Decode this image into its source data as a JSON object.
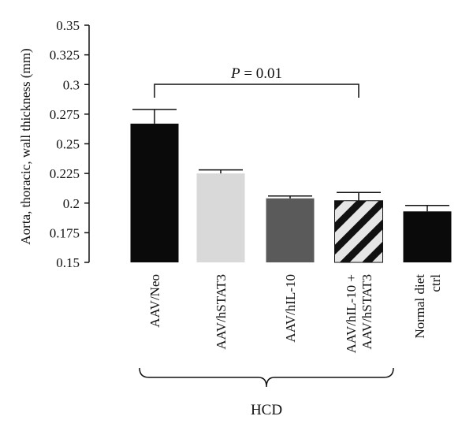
{
  "chart_data": {
    "type": "bar",
    "ylabel": "Aorta, thoracic, wall thickness (mm)",
    "ylim": [
      0.15,
      0.35
    ],
    "yticks": [
      0.15,
      0.175,
      0.2,
      0.225,
      0.25,
      0.275,
      0.3,
      0.325,
      0.35
    ],
    "ytick_labels": [
      "0.15",
      "0.175",
      "0.2",
      "0.225",
      "0.25",
      "0.275",
      "0.3",
      "0.325",
      "0.35"
    ],
    "categories": [
      [
        "AAV/Neo"
      ],
      [
        "AAV/hSTAT3"
      ],
      [
        "AAV/hIL-10"
      ],
      [
        "AAV/hIL-10 +",
        "AAV/hSTAT3"
      ],
      [
        "Normal diet",
        "ctrl"
      ]
    ],
    "values": [
      0.267,
      0.225,
      0.204,
      0.202,
      0.193
    ],
    "errors": [
      0.012,
      0.003,
      0.002,
      0.007,
      0.005
    ],
    "bar_styles": [
      {
        "fill": "#0a0a0a",
        "pattern": "solid"
      },
      {
        "fill": "#d9d9d9",
        "pattern": "solid"
      },
      {
        "fill": "#5a5a5a",
        "pattern": "solid"
      },
      {
        "fill": "#e6e6e6",
        "pattern": "diagonal-stripes",
        "stripe": "#111111"
      },
      {
        "fill": "#0a0a0a",
        "pattern": "solid"
      }
    ],
    "annotations": [
      {
        "text_italic": "P",
        "text_rest": " = 0.01",
        "from_category": 0,
        "to_category": 3
      }
    ],
    "group": {
      "label": "HCD",
      "from_category": 0,
      "to_category": 3
    },
    "grid": false
  }
}
